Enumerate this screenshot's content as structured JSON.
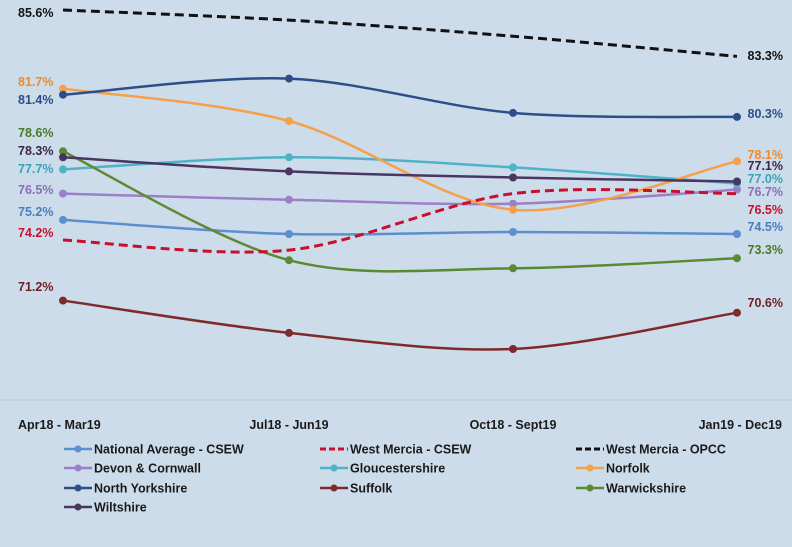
{
  "chart_data": {
    "type": "line",
    "title": "",
    "xlabel": "",
    "ylabel": "",
    "categories": [
      "Apr18 - Mar19",
      "Jul18 - Jun19",
      "Oct18 - Sept19",
      "Jan19 - Dec19"
    ],
    "ylim": [
      68.5,
      86.5
    ],
    "grid": false,
    "legend_position": "bottom",
    "series": [
      {
        "name": "National Average - CSEW",
        "color": "#5b8fd0",
        "dash": "solid",
        "values": [
          75.2,
          74.5,
          74.6,
          74.5
        ],
        "labels": [
          "75.2%",
          "",
          "",
          "74.5%"
        ],
        "label_color": "#4a7fc0"
      },
      {
        "name": "West Mercia - CSEW",
        "color": "#c8102e",
        "dash": "dash",
        "values": [
          74.2,
          73.7,
          76.5,
          76.5
        ],
        "labels": [
          "74.2%",
          "",
          "",
          "76.5%"
        ],
        "label_color": "#c8102e"
      },
      {
        "name": "West Mercia - OPCC",
        "color": "#111111",
        "dash": "dash",
        "values": [
          85.6,
          85.1,
          84.3,
          83.3
        ],
        "labels": [
          "85.6%",
          "",
          "",
          "83.3%"
        ],
        "label_color": "#111111"
      },
      {
        "name": "Devon & Cornwall",
        "color": "#9b7fc8",
        "dash": "solid",
        "values": [
          76.5,
          76.2,
          76.0,
          76.7
        ],
        "labels": [
          "76.5%",
          "",
          "",
          "76.7%"
        ],
        "label_color": "#8a6fb8"
      },
      {
        "name": "Gloucestershire",
        "color": "#4fb3c8",
        "dash": "solid",
        "values": [
          77.7,
          78.3,
          77.8,
          77.0
        ],
        "labels": [
          "77.7%",
          "",
          "",
          "77.0%"
        ],
        "label_color": "#3aa3b8"
      },
      {
        "name": "Norfolk",
        "color": "#f5a04a",
        "dash": "solid",
        "values": [
          81.7,
          80.1,
          75.7,
          78.1
        ],
        "labels": [
          "81.7%",
          "",
          "",
          "78.1%"
        ],
        "label_color": "#f08a2a"
      },
      {
        "name": "North Yorkshire",
        "color": "#2c4f8a",
        "dash": "solid",
        "values": [
          81.4,
          82.2,
          80.5,
          80.3
        ],
        "labels": [
          "81.4%",
          "",
          "",
          "80.3%"
        ],
        "label_color": "#2c4f8a"
      },
      {
        "name": "Suffolk",
        "color": "#7f2a2a",
        "dash": "solid",
        "values": [
          71.2,
          69.6,
          68.8,
          70.6
        ],
        "labels": [
          "71.2%",
          "",
          "",
          "70.6%"
        ],
        "label_color": "#6f1f1f"
      },
      {
        "name": "Warwickshire",
        "color": "#5a8a32",
        "dash": "solid",
        "values": [
          78.6,
          73.2,
          72.8,
          73.3
        ],
        "labels": [
          "78.6%",
          "",
          "",
          "73.3%"
        ],
        "label_color": "#4a7a22"
      },
      {
        "name": "Wiltshire",
        "color": "#4a3560",
        "dash": "solid",
        "values": [
          78.3,
          77.6,
          77.3,
          77.1
        ],
        "labels": [
          "78.3%",
          "",
          "",
          "77.1%"
        ],
        "label_color": "#3a2550"
      }
    ]
  }
}
